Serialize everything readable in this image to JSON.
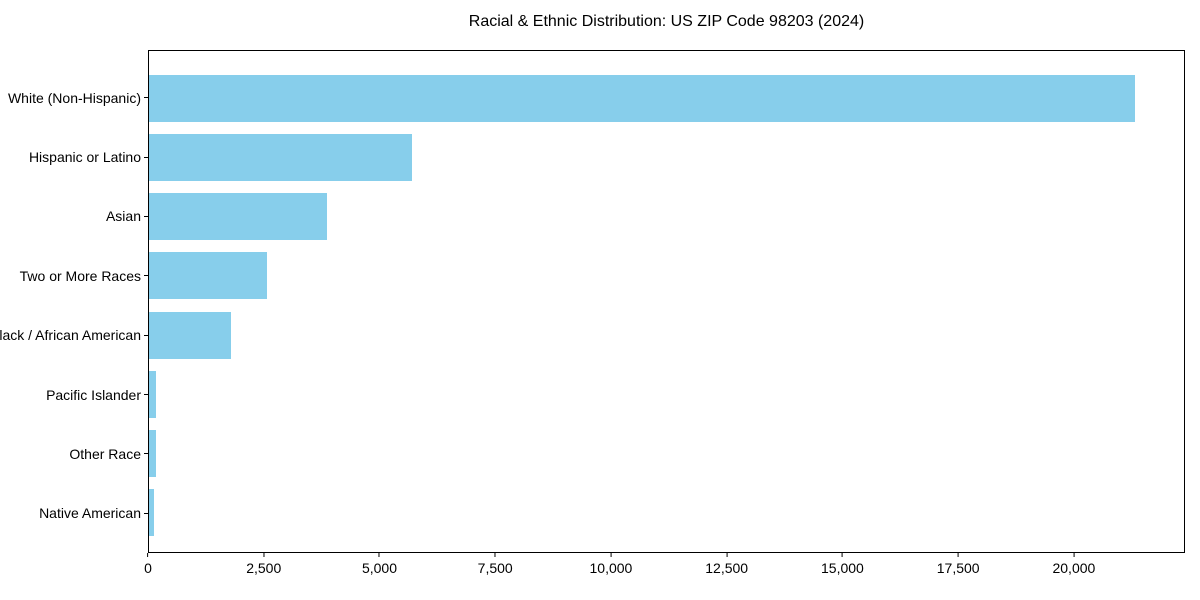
{
  "title": "Racial & Ethnic Distribution: US ZIP Code 98203 (2024)",
  "chart_data": {
    "type": "bar",
    "orientation": "horizontal",
    "title": "Racial & Ethnic Distribution: US ZIP Code 98203 (2024)",
    "categories": [
      "White (Non-Hispanic)",
      "Hispanic or Latino",
      "Asian",
      "Two or More Races",
      "Black / African American",
      "Pacific Islander",
      "Other Race",
      "Native American"
    ],
    "values": [
      21350,
      5700,
      3860,
      2560,
      1780,
      150,
      145,
      100
    ],
    "xlabel": "",
    "ylabel": "",
    "xlim": [
      0,
      22400
    ],
    "xticks": [
      0,
      2500,
      5000,
      7500,
      10000,
      12500,
      15000,
      17500,
      20000
    ],
    "xtick_labels": [
      "0",
      "2,500",
      "5,000",
      "7,500",
      "10,000",
      "12,500",
      "15,000",
      "17,500",
      "20,000"
    ],
    "bar_color": "#87CEEB",
    "grid": false,
    "legend": null,
    "sort_order": "descending"
  }
}
